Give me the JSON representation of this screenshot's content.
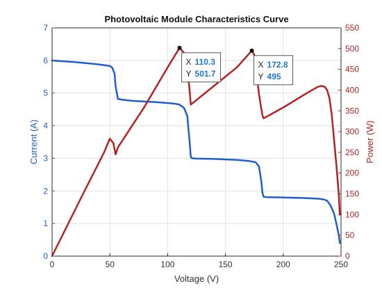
{
  "chart_data": {
    "type": "line",
    "title": "Photovoltaic Module Characteristics Curve",
    "xlabel": "Voltage (V)",
    "ylabel_left": "Current (A)",
    "ylabel_right": "Power (W)",
    "xlim": [
      0,
      250
    ],
    "ylim_left": [
      0,
      7
    ],
    "ylim_right": [
      0,
      550
    ],
    "x_ticks": [
      "0",
      "50",
      "100",
      "150",
      "200",
      "250"
    ],
    "y_left_ticks": [
      "0",
      "1",
      "2",
      "3",
      "4",
      "5",
      "6",
      "7"
    ],
    "y_right_ticks": [
      "0",
      "50",
      "100",
      "150",
      "200",
      "250",
      "300",
      "350",
      "400",
      "450",
      "500",
      "550"
    ],
    "grid": true,
    "series": [
      {
        "axis": "left",
        "color": "#1f5fcc",
        "x": [
          0,
          20,
          40,
          50,
          52,
          54,
          55,
          57,
          60,
          70,
          90,
          105,
          110,
          114,
          117,
          119,
          120,
          121,
          125,
          140,
          160,
          170,
          176,
          179,
          181,
          182,
          183,
          185,
          200,
          220,
          230,
          235,
          238,
          241,
          244,
          246,
          248,
          249
        ],
        "y": [
          6.0,
          5.95,
          5.88,
          5.83,
          5.78,
          5.6,
          5.2,
          4.82,
          4.8,
          4.76,
          4.72,
          4.68,
          4.65,
          4.55,
          4.3,
          3.5,
          3.05,
          3.0,
          2.99,
          2.98,
          2.95,
          2.92,
          2.88,
          2.75,
          2.3,
          1.95,
          1.82,
          1.81,
          1.8,
          1.78,
          1.76,
          1.74,
          1.7,
          1.55,
          1.3,
          1.0,
          0.65,
          0.4
        ]
      },
      {
        "axis": "right",
        "color": "#b22222",
        "x": [
          0,
          25,
          45,
          50,
          53,
          55,
          57,
          80,
          100,
          110.3,
          115,
          118,
          120,
          140,
          160,
          172.8,
          175,
          177,
          179,
          181,
          182,
          183,
          185,
          200,
          220,
          230,
          233,
          236,
          238,
          240,
          242,
          244,
          246,
          248,
          249
        ],
        "y": [
          0,
          140,
          250,
          283,
          272,
          245,
          262,
          360,
          455,
          501.7,
          487,
          430,
          365,
          410,
          455,
          495,
          485,
          440,
          390,
          355,
          340,
          332,
          335,
          358,
          392,
          408,
          410,
          408,
          400,
          380,
          340,
          280,
          220,
          150,
          100
        ]
      }
    ],
    "datatips": [
      {
        "x_label": "X",
        "x_value": "110.3",
        "y_label": "Y",
        "y_value": "501.7",
        "x": 110.3,
        "y": 501.7
      },
      {
        "x_label": "X",
        "x_value": "172.8",
        "y_label": "Y",
        "y_value": "495",
        "x": 172.8,
        "y": 495
      }
    ]
  }
}
